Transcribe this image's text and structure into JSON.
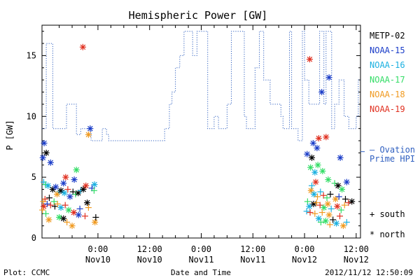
{
  "chart_data": {
    "type": "scatter",
    "title": "Hemispheric Power [GW]",
    "ylabel": "P [GW]",
    "xlabel": "Date and Time",
    "ylim": [
      0,
      17.5
    ],
    "yticks": [
      0,
      5,
      10,
      15
    ],
    "xlim": [
      -13,
      61
    ],
    "xticks": [
      {
        "t": 0,
        "time": "0:00",
        "date": "Nov10"
      },
      {
        "t": 12,
        "time": "12:00",
        "date": "Nov10"
      },
      {
        "t": 24,
        "time": "0:00",
        "date": "Nov11"
      },
      {
        "t": 36,
        "time": "12:00",
        "date": "Nov11"
      },
      {
        "t": 48,
        "time": "0:00",
        "date": "Nov12"
      },
      {
        "t": 60,
        "time": "12:00",
        "date": "Nov12"
      }
    ],
    "footer_left": "Plot: CCMC",
    "footer_right": "2012/11/12 12:50:09",
    "ovation_label": [
      "— Ovation",
      "Prime HPI"
    ],
    "marker_legend": [
      {
        "symbol": "+",
        "label": "south"
      },
      {
        "symbol": "*",
        "label": "north"
      }
    ],
    "colors": {
      "METP-02": "#000000",
      "NOAA-15": "#1a3cc8",
      "NOAA-16": "#1ab0e0",
      "NOAA-17": "#33dd66",
      "NOAA-18": "#f09a20",
      "NOAA-19": "#e03020",
      "ovation": "#3060c0"
    },
    "satellites": [
      "METP-02",
      "NOAA-15",
      "NOAA-16",
      "NOAA-17",
      "NOAA-18",
      "NOAA-19"
    ],
    "ovation": [
      [
        -13,
        9
      ],
      [
        -12,
        9
      ],
      [
        -12,
        16
      ],
      [
        -10.5,
        16
      ],
      [
        -10.5,
        9
      ],
      [
        -7.3,
        9
      ],
      [
        -7.3,
        11
      ],
      [
        -5,
        11
      ],
      [
        -5,
        8.5
      ],
      [
        -4,
        8.5
      ],
      [
        -4,
        9
      ],
      [
        -1.6,
        9
      ],
      [
        -1.6,
        8
      ],
      [
        1,
        8
      ],
      [
        1,
        9
      ],
      [
        2,
        9
      ],
      [
        2,
        8.5
      ],
      [
        2.5,
        8.5
      ],
      [
        2.5,
        8
      ],
      [
        15.5,
        8
      ],
      [
        15.5,
        9
      ],
      [
        16.6,
        9
      ],
      [
        16.6,
        11
      ],
      [
        17.2,
        11
      ],
      [
        17.2,
        12
      ],
      [
        18,
        12
      ],
      [
        18,
        14
      ],
      [
        19,
        14
      ],
      [
        19,
        15
      ],
      [
        20,
        15
      ],
      [
        20,
        17
      ],
      [
        22,
        17
      ],
      [
        22,
        15
      ],
      [
        23,
        15
      ],
      [
        23,
        17
      ],
      [
        25.5,
        17
      ],
      [
        25.5,
        9
      ],
      [
        27,
        9
      ],
      [
        27,
        10
      ],
      [
        28,
        10
      ],
      [
        28,
        9
      ],
      [
        30,
        9
      ],
      [
        30,
        11
      ],
      [
        31,
        11
      ],
      [
        31,
        17
      ],
      [
        34,
        17
      ],
      [
        34,
        10
      ],
      [
        34.5,
        10
      ],
      [
        34.5,
        9
      ],
      [
        36.5,
        9
      ],
      [
        36.5,
        14
      ],
      [
        37.5,
        14
      ],
      [
        37.5,
        17
      ],
      [
        38.5,
        17
      ],
      [
        38.5,
        13
      ],
      [
        40,
        13
      ],
      [
        40,
        11
      ],
      [
        42.5,
        11
      ],
      [
        42.5,
        10
      ],
      [
        43,
        10
      ],
      [
        43,
        9
      ],
      [
        44.5,
        9
      ],
      [
        44.5,
        17
      ],
      [
        45,
        17
      ],
      [
        45,
        9
      ],
      [
        46.5,
        9
      ],
      [
        46.5,
        8
      ],
      [
        47.5,
        8
      ],
      [
        47.5,
        17
      ],
      [
        48,
        17
      ],
      [
        48,
        13
      ],
      [
        49,
        13
      ],
      [
        49,
        11
      ],
      [
        51.5,
        11
      ],
      [
        51.5,
        17
      ],
      [
        52.5,
        17
      ],
      [
        52.5,
        11
      ],
      [
        53,
        11
      ],
      [
        53,
        17
      ],
      [
        54.3,
        17
      ],
      [
        54.3,
        9
      ],
      [
        55,
        9
      ],
      [
        55,
        11
      ],
      [
        56,
        11
      ],
      [
        56,
        13
      ],
      [
        57.2,
        13
      ],
      [
        57.2,
        10
      ],
      [
        58.3,
        10
      ],
      [
        58.3,
        9
      ],
      [
        60,
        9
      ],
      [
        60,
        10
      ],
      [
        60.5,
        10
      ],
      [
        60.5,
        13
      ],
      [
        61,
        13
      ]
    ],
    "points": [
      {
        "sat": "NOAA-19",
        "m": "*",
        "x": -3.5,
        "y": 15.7
      },
      {
        "sat": "NOAA-15",
        "m": "*",
        "x": -1.8,
        "y": 9.0
      },
      {
        "sat": "NOAA-18",
        "m": "*",
        "x": -2.2,
        "y": 8.5
      },
      {
        "sat": "NOAA-15",
        "m": "*",
        "x": -12.5,
        "y": 7.8
      },
      {
        "sat": "METP-02",
        "m": "*",
        "x": -12.0,
        "y": 7.0
      },
      {
        "sat": "NOAA-15",
        "m": "*",
        "x": -12.8,
        "y": 6.6
      },
      {
        "sat": "NOAA-15",
        "m": "*",
        "x": -11.0,
        "y": 6.2
      },
      {
        "sat": "NOAA-17",
        "m": "*",
        "x": -5.0,
        "y": 5.6
      },
      {
        "sat": "NOAA-19",
        "m": "*",
        "x": -7.5,
        "y": 5.0
      },
      {
        "sat": "NOAA-15",
        "m": "*",
        "x": -8.0,
        "y": 4.5
      },
      {
        "sat": "NOAA-15",
        "m": "*",
        "x": -5.5,
        "y": 4.8
      },
      {
        "sat": "NOAA-16",
        "m": "+",
        "x": -12.6,
        "y": 4.6
      },
      {
        "sat": "NOAA-17",
        "m": "+",
        "x": -12.2,
        "y": 4.4
      },
      {
        "sat": "NOAA-16",
        "m": "*",
        "x": -11.6,
        "y": 4.3
      },
      {
        "sat": "METP-02",
        "m": "*",
        "x": -10.5,
        "y": 4.0
      },
      {
        "sat": "NOAA-15",
        "m": "*",
        "x": -9.8,
        "y": 4.2
      },
      {
        "sat": "NOAA-16",
        "m": "+",
        "x": -9.0,
        "y": 3.8
      },
      {
        "sat": "NOAA-18",
        "m": "*",
        "x": -9.5,
        "y": 3.6
      },
      {
        "sat": "METP-02",
        "m": "*",
        "x": -8.6,
        "y": 3.9
      },
      {
        "sat": "NOAA-16",
        "m": "*",
        "x": -7.8,
        "y": 3.7
      },
      {
        "sat": "NOAA-19",
        "m": "+",
        "x": -7.0,
        "y": 4.0
      },
      {
        "sat": "NOAA-15",
        "m": "*",
        "x": -6.5,
        "y": 3.4
      },
      {
        "sat": "METP-02",
        "m": "+",
        "x": -5.8,
        "y": 3.8
      },
      {
        "sat": "NOAA-17",
        "m": "+",
        "x": -5.2,
        "y": 3.6
      },
      {
        "sat": "METP-02",
        "m": "*",
        "x": -4.6,
        "y": 3.7
      },
      {
        "sat": "NOAA-16",
        "m": "+",
        "x": -4.0,
        "y": 3.9
      },
      {
        "sat": "METP-02",
        "m": "*",
        "x": -3.4,
        "y": 4.0
      },
      {
        "sat": "NOAA-19",
        "m": "*",
        "x": -2.8,
        "y": 4.3
      },
      {
        "sat": "NOAA-16",
        "m": "*",
        "x": -0.8,
        "y": 4.4
      },
      {
        "sat": "NOAA-15",
        "m": "+",
        "x": -1.4,
        "y": 4.1
      },
      {
        "sat": "NOAA-17",
        "m": "+",
        "x": -0.9,
        "y": 3.9
      },
      {
        "sat": "NOAA-19",
        "m": "+",
        "x": -12.3,
        "y": 3.2
      },
      {
        "sat": "NOAA-18",
        "m": "+",
        "x": -12.7,
        "y": 3.0
      },
      {
        "sat": "METP-02",
        "m": "+",
        "x": -11.3,
        "y": 3.3
      },
      {
        "sat": "NOAA-17",
        "m": "+",
        "x": -10.2,
        "y": 3.0
      },
      {
        "sat": "NOAA-19",
        "m": "*",
        "x": -12.6,
        "y": 2.6
      },
      {
        "sat": "NOAA-15",
        "m": "+",
        "x": -11.8,
        "y": 2.8
      },
      {
        "sat": "NOAA-19",
        "m": "+",
        "x": -11.0,
        "y": 2.7
      },
      {
        "sat": "METP-02",
        "m": "+",
        "x": -10.0,
        "y": 2.6
      },
      {
        "sat": "NOAA-18",
        "m": "+",
        "x": -9.4,
        "y": 2.8
      },
      {
        "sat": "NOAA-16",
        "m": "*",
        "x": -8.6,
        "y": 2.5
      },
      {
        "sat": "NOAA-19",
        "m": "+",
        "x": -7.6,
        "y": 2.7
      },
      {
        "sat": "NOAA-17",
        "m": "*",
        "x": -6.8,
        "y": 2.3
      },
      {
        "sat": "NOAA-19",
        "m": "*",
        "x": -5.6,
        "y": 2.1
      },
      {
        "sat": "NOAA-15",
        "m": "+",
        "x": -4.2,
        "y": 2.4
      },
      {
        "sat": "METP-02",
        "m": "*",
        "x": -2.5,
        "y": 2.9
      },
      {
        "sat": "NOAA-18",
        "m": "+",
        "x": -2.2,
        "y": 2.5
      },
      {
        "sat": "NOAA-18",
        "m": "+",
        "x": -12.9,
        "y": 2.3
      },
      {
        "sat": "NOAA-17",
        "m": "+",
        "x": -12.1,
        "y": 2.0
      },
      {
        "sat": "NOAA-18",
        "m": "*",
        "x": -11.4,
        "y": 1.5
      },
      {
        "sat": "NOAA-17",
        "m": "*",
        "x": -9.0,
        "y": 1.7
      },
      {
        "sat": "METP-02",
        "m": "*",
        "x": -8.0,
        "y": 1.6
      },
      {
        "sat": "NOAA-18",
        "m": "+",
        "x": -7.2,
        "y": 1.3
      },
      {
        "sat": "NOAA-18",
        "m": "*",
        "x": -6.0,
        "y": 1.0
      },
      {
        "sat": "NOAA-15",
        "m": "*",
        "x": -4.5,
        "y": 1.9
      },
      {
        "sat": "NOAA-19",
        "m": "+",
        "x": -3.0,
        "y": 1.8
      },
      {
        "sat": "NOAA-18",
        "m": "*",
        "x": -0.7,
        "y": 1.3
      },
      {
        "sat": "METP-02",
        "m": "+",
        "x": -0.5,
        "y": 1.7
      },
      {
        "sat": "NOAA-19",
        "m": "*",
        "x": 49.2,
        "y": 14.7
      },
      {
        "sat": "NOAA-15",
        "m": "*",
        "x": 53.7,
        "y": 13.2
      },
      {
        "sat": "NOAA-15",
        "m": "*",
        "x": 52.0,
        "y": 12.0
      },
      {
        "sat": "NOAA-19",
        "m": "*",
        "x": 51.3,
        "y": 8.2
      },
      {
        "sat": "NOAA-19",
        "m": "*",
        "x": 53.0,
        "y": 8.3
      },
      {
        "sat": "NOAA-15",
        "m": "*",
        "x": 50.0,
        "y": 7.8
      },
      {
        "sat": "NOAA-15",
        "m": "*",
        "x": 50.9,
        "y": 7.4
      },
      {
        "sat": "NOAA-15",
        "m": "*",
        "x": 48.6,
        "y": 6.9
      },
      {
        "sat": "NOAA-15",
        "m": "*",
        "x": 56.3,
        "y": 6.6
      },
      {
        "sat": "METP-02",
        "m": "*",
        "x": 49.7,
        "y": 6.6
      },
      {
        "sat": "NOAA-17",
        "m": "*",
        "x": 49.4,
        "y": 5.8
      },
      {
        "sat": "NOAA-17",
        "m": "*",
        "x": 51.1,
        "y": 6.0
      },
      {
        "sat": "NOAA-17",
        "m": "*",
        "x": 52.2,
        "y": 5.5
      },
      {
        "sat": "NOAA-16",
        "m": "*",
        "x": 50.4,
        "y": 5.4
      },
      {
        "sat": "NOAA-17",
        "m": "*",
        "x": 53.5,
        "y": 4.8
      },
      {
        "sat": "NOAA-15",
        "m": "*",
        "x": 57.8,
        "y": 4.6
      },
      {
        "sat": "NOAA-16",
        "m": "+",
        "x": 49.7,
        "y": 4.3
      },
      {
        "sat": "NOAA-19",
        "m": "*",
        "x": 50.6,
        "y": 4.6
      },
      {
        "sat": "NOAA-17",
        "m": "+",
        "x": 55.0,
        "y": 4.5
      },
      {
        "sat": "METP-02",
        "m": "*",
        "x": 55.8,
        "y": 4.3
      },
      {
        "sat": "NOAA-17",
        "m": "*",
        "x": 56.7,
        "y": 4.0
      },
      {
        "sat": "NOAA-18",
        "m": "*",
        "x": 49.5,
        "y": 3.9
      },
      {
        "sat": "NOAA-16",
        "m": "*",
        "x": 50.2,
        "y": 3.6
      },
      {
        "sat": "NOAA-18",
        "m": "+",
        "x": 51.0,
        "y": 3.4
      },
      {
        "sat": "NOAA-16",
        "m": "+",
        "x": 51.7,
        "y": 3.8
      },
      {
        "sat": "NOAA-19",
        "m": "+",
        "x": 52.4,
        "y": 3.5
      },
      {
        "sat": "NOAA-17",
        "m": "+",
        "x": 53.2,
        "y": 3.3
      },
      {
        "sat": "METP-02",
        "m": "+",
        "x": 54.0,
        "y": 3.6
      },
      {
        "sat": "NOAA-18",
        "m": "*",
        "x": 55.2,
        "y": 3.2
      },
      {
        "sat": "NOAA-15",
        "m": "+",
        "x": 56.0,
        "y": 3.4
      },
      {
        "sat": "METP-02",
        "m": "+",
        "x": 57.5,
        "y": 3.2
      },
      {
        "sat": "NOAA-17",
        "m": "+",
        "x": 48.7,
        "y": 3.0
      },
      {
        "sat": "NOAA-16",
        "m": "*",
        "x": 49.1,
        "y": 2.6
      },
      {
        "sat": "METP-02",
        "m": "*",
        "x": 50.1,
        "y": 2.8
      },
      {
        "sat": "NOAA-18",
        "m": "+",
        "x": 50.8,
        "y": 2.9
      },
      {
        "sat": "NOAA-19",
        "m": "+",
        "x": 51.6,
        "y": 2.7
      },
      {
        "sat": "NOAA-17",
        "m": "*",
        "x": 52.5,
        "y": 2.5
      },
      {
        "sat": "NOAA-18",
        "m": "*",
        "x": 53.4,
        "y": 2.8
      },
      {
        "sat": "NOAA-16",
        "m": "+",
        "x": 54.2,
        "y": 2.4
      },
      {
        "sat": "NOAA-19",
        "m": "*",
        "x": 55.6,
        "y": 2.6
      },
      {
        "sat": "NOAA-17",
        "m": "+",
        "x": 56.5,
        "y": 2.3
      },
      {
        "sat": "NOAA-18",
        "m": "+",
        "x": 57.3,
        "y": 2.7
      },
      {
        "sat": "NOAA-19",
        "m": "+",
        "x": 58.2,
        "y": 2.9
      },
      {
        "sat": "METP-02",
        "m": "*",
        "x": 59.0,
        "y": 3.0
      },
      {
        "sat": "NOAA-16",
        "m": "+",
        "x": 48.5,
        "y": 2.2
      },
      {
        "sat": "NOAA-19",
        "m": "+",
        "x": 49.3,
        "y": 2.1
      },
      {
        "sat": "NOAA-18",
        "m": "+",
        "x": 50.4,
        "y": 2.0
      },
      {
        "sat": "NOAA-16",
        "m": "*",
        "x": 51.3,
        "y": 1.6
      },
      {
        "sat": "NOAA-18",
        "m": "+",
        "x": 52.1,
        "y": 2.1
      },
      {
        "sat": "NOAA-17",
        "m": "*",
        "x": 52.9,
        "y": 1.4
      },
      {
        "sat": "NOAA-18",
        "m": "*",
        "x": 53.7,
        "y": 1.9
      },
      {
        "sat": "METP-02",
        "m": "+",
        "x": 54.6,
        "y": 1.5
      },
      {
        "sat": "NOAA-16",
        "m": "*",
        "x": 55.4,
        "y": 1.2
      },
      {
        "sat": "NOAA-19",
        "m": "+",
        "x": 56.2,
        "y": 1.8
      },
      {
        "sat": "NOAA-18",
        "m": "*",
        "x": 57.0,
        "y": 1.0
      },
      {
        "sat": "NOAA-16",
        "m": "+",
        "x": 57.8,
        "y": 1.3
      },
      {
        "sat": "NOAA-18",
        "m": "+",
        "x": 53.9,
        "y": 1.1
      },
      {
        "sat": "NOAA-17",
        "m": "+",
        "x": 51.8,
        "y": 1.3
      }
    ]
  }
}
